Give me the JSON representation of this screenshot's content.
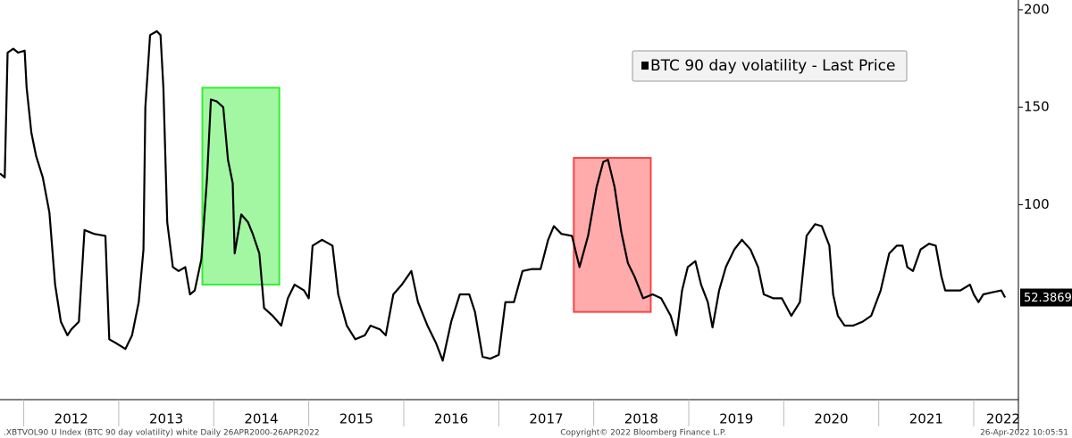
{
  "chart_data": {
    "type": "line",
    "xlim": [
      2011.75,
      2022.47
    ],
    "ylim": [
      0,
      205
    ],
    "yticks": [
      100,
      150,
      200
    ],
    "xticks": [
      2012,
      2013,
      2014,
      2015,
      2016,
      2017,
      2018,
      2019,
      2020,
      2021,
      2022
    ],
    "legend": "top-right",
    "highlights": [
      {
        "color": "#33ee33",
        "x": [
          2013.88,
          2014.69
        ],
        "y": [
          59,
          160
        ]
      },
      {
        "color": "#ff4444",
        "x": [
          2017.79,
          2018.6
        ],
        "y": [
          45,
          124
        ]
      }
    ],
    "series": [
      {
        "name": "BTC 90 day volatility - Last Price",
        "color": "#000000",
        "x": [
          2011.75,
          2011.8,
          2011.83,
          2011.89,
          2011.94,
          2012.01,
          2012.03,
          2012.08,
          2012.13,
          2012.2,
          2012.27,
          2012.33,
          2012.39,
          2012.46,
          2012.5,
          2012.58,
          2012.64,
          2012.74,
          2012.86,
          2012.9,
          2012.97,
          2013.07,
          2013.14,
          2013.21,
          2013.26,
          2013.28,
          2013.33,
          2013.4,
          2013.44,
          2013.47,
          2013.51,
          2013.57,
          2013.63,
          2013.7,
          2013.75,
          2013.8,
          2013.87,
          2013.93,
          2013.97,
          2014.03,
          2014.1,
          2014.15,
          2014.2,
          2014.22,
          2014.29,
          2014.36,
          2014.41,
          2014.48,
          2014.53,
          2014.62,
          2014.71,
          2014.78,
          2014.85,
          2014.95,
          2015.0,
          2015.04,
          2015.14,
          2015.25,
          2015.31,
          2015.4,
          2015.49,
          2015.59,
          2015.65,
          2015.75,
          2015.81,
          2015.89,
          2015.98,
          2016.08,
          2016.15,
          2016.25,
          2016.34,
          2016.41,
          2016.5,
          2016.59,
          2016.69,
          2016.75,
          2016.83,
          2016.91,
          2017.0,
          2017.07,
          2017.16,
          2017.25,
          2017.35,
          2017.44,
          2017.52,
          2017.58,
          2017.66,
          2017.77,
          2017.85,
          2017.94,
          2018.03,
          2018.1,
          2018.15,
          2018.22,
          2018.29,
          2018.36,
          2018.43,
          2018.52,
          2018.62,
          2018.71,
          2018.81,
          2018.87,
          2018.93,
          2018.99,
          2019.07,
          2019.13,
          2019.2,
          2019.25,
          2019.32,
          2019.39,
          2019.48,
          2019.56,
          2019.65,
          2019.73,
          2019.79,
          2019.89,
          2019.98,
          2020.08,
          2020.17,
          2020.24,
          2020.33,
          2020.4,
          2020.48,
          2020.52,
          2020.57,
          2020.64,
          2020.73,
          2020.83,
          2020.92,
          2021.02,
          2021.11,
          2021.19,
          2021.25,
          2021.3,
          2021.36,
          2021.44,
          2021.53,
          2021.6,
          2021.66,
          2021.7,
          2021.77,
          2021.86,
          2021.96,
          2022.0,
          2022.05,
          2022.1,
          2022.19,
          2022.29,
          2022.33
        ],
        "values": [
          116,
          114,
          178,
          180,
          178,
          179,
          160,
          137,
          125,
          114,
          96,
          59,
          40,
          33,
          36,
          40,
          87,
          85,
          84,
          31,
          29,
          26,
          33,
          50,
          77,
          150,
          187,
          189,
          187,
          160,
          91,
          68,
          66,
          68,
          54,
          56,
          72,
          114,
          154,
          153,
          150,
          123,
          111,
          75,
          95,
          91,
          85,
          75,
          47,
          43,
          38,
          52,
          59,
          56,
          52,
          79,
          82,
          79,
          54,
          38,
          31,
          33,
          38,
          36,
          33,
          54,
          59,
          66,
          50,
          38,
          29,
          20,
          40,
          54,
          54,
          45,
          22,
          21,
          23,
          50,
          50,
          66,
          67,
          67,
          82,
          89,
          85,
          84,
          68,
          84,
          109,
          122,
          123,
          109,
          86,
          70,
          63,
          52,
          54,
          52,
          43,
          33,
          56,
          68,
          71,
          59,
          50,
          37,
          56,
          68,
          77,
          82,
          77,
          68,
          54,
          52,
          52,
          43,
          50,
          84,
          90,
          89,
          79,
          54,
          43,
          38,
          38,
          40,
          43,
          56,
          75,
          79,
          79,
          68,
          66,
          77,
          80,
          79,
          63,
          56,
          56,
          56,
          59,
          54,
          50,
          54,
          55,
          56,
          52.3869
        ]
      }
    ]
  },
  "footer": {
    "left": ".XBTVOL90 U Index (BTC 90 day volatility) white  Daily 26APR2000-26APR2022",
    "center": "Copyright© 2022 Bloomberg Finance L.P.",
    "right": "26-Apr-2022 10:05:51"
  }
}
